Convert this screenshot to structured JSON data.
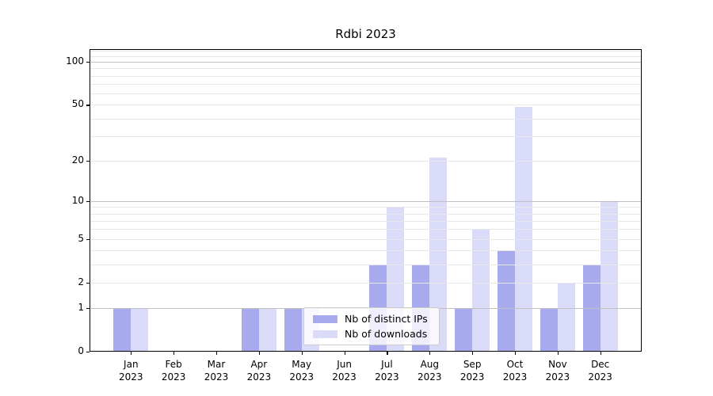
{
  "chart_data": {
    "type": "bar",
    "title": "Rdbi 2023",
    "categories": [
      "Jan",
      "Feb",
      "Mar",
      "Apr",
      "May",
      "Jun",
      "Jul",
      "Aug",
      "Sep",
      "Oct",
      "Nov",
      "Dec"
    ],
    "category_year": "2023",
    "series": [
      {
        "name": "Nb of distinct IPs",
        "color": "#a8aaee",
        "values": [
          1,
          0,
          0,
          1,
          1,
          0,
          3,
          3,
          1,
          4,
          1,
          3
        ]
      },
      {
        "name": "Nb of downloads",
        "color": "#d9dbf8",
        "values": [
          1,
          0,
          0,
          1,
          1,
          0,
          9,
          21,
          6,
          48,
          2,
          10
        ]
      }
    ],
    "xlabel": "",
    "ylabel": "",
    "y_scale": "log1p",
    "ylim": [
      0,
      123
    ],
    "y_ticks": [
      0,
      1,
      2,
      5,
      10,
      20,
      50,
      100
    ],
    "y_major_gridlines": [
      1,
      10,
      100
    ],
    "y_minor_gridlines": [
      2,
      3,
      4,
      5,
      6,
      7,
      8,
      9,
      20,
      30,
      40,
      50,
      60,
      70,
      80,
      90,
      110,
      120
    ],
    "grid": "horizontal",
    "legend_position": "lower-center",
    "colors": {
      "major_grid": "#c0c0c0",
      "minor_grid": "#e8e8e8",
      "spine": "#000000",
      "text": "#000000",
      "background": "#ffffff"
    }
  }
}
